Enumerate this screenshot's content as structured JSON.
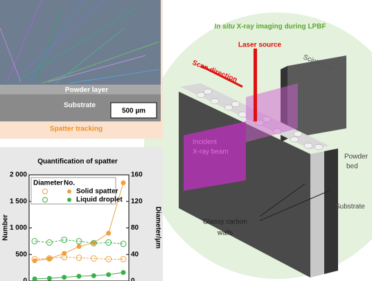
{
  "photo": {
    "powder_label": "Powder layer",
    "substrate_label": "Substrate",
    "scale_bar": "500 µm",
    "caption": "Spatter tracking"
  },
  "chart_data": {
    "type": "line",
    "title": "Quantification of spatter",
    "ylabel": "Number",
    "y2label": "Diameter/μm",
    "legend_headers": [
      "Diameter",
      "No."
    ],
    "categories": [
      null,
      null,
      null,
      null,
      null,
      null,
      null
    ],
    "ylim": [
      0,
      2000
    ],
    "yticks": [
      0,
      500,
      {
        "value": 1000,
        "label": "1 000"
      },
      {
        "value": 1500,
        "label": "1 500"
      },
      {
        "value": 2000,
        "label": "2 000"
      }
    ],
    "y2lim": [
      0,
      160
    ],
    "y2ticks": [
      0,
      40,
      80,
      120,
      160
    ],
    "series": [
      {
        "name": "Solid spatter",
        "color": "#f0a040",
        "values": [
          380,
          420,
          520,
          650,
          720,
          900,
          1850
        ],
        "diameter": [
          33,
          34,
          36,
          35,
          34,
          33,
          33
        ]
      },
      {
        "name": "Liquid droplet",
        "color": "#3cb04a",
        "values": [
          40,
          50,
          70,
          90,
          100,
          120,
          160
        ],
        "diameter": [
          60,
          58,
          62,
          60,
          57,
          58,
          56
        ]
      }
    ]
  },
  "diagram": {
    "title_italic": "In situ",
    "title_rest": "X-ray imaging during LPBF",
    "laser": "Laser source",
    "scan": "Scan direction",
    "scintillator": "Scintillator",
    "beam": [
      "Incident",
      "X-ray beam"
    ],
    "powder_bed": [
      "Powder",
      "bed"
    ],
    "substrate": "Substrate",
    "walls": [
      "Glassy carbon",
      "walls"
    ]
  }
}
